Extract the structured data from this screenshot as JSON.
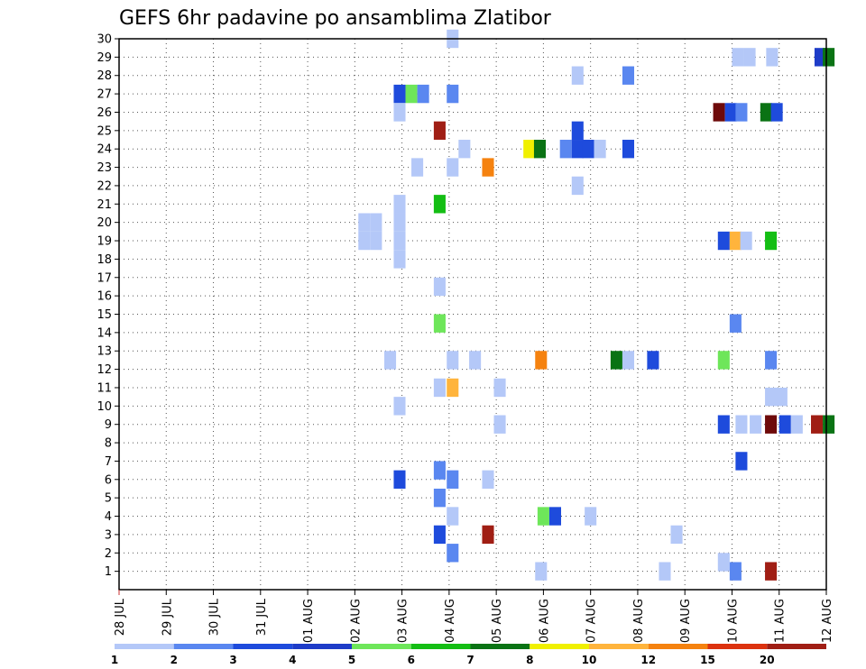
{
  "chart_data": {
    "type": "heatmap",
    "title": "GEFS 6hr padavine po ansamblima Zlatibor",
    "x_tick_labels": [
      "28 JUL",
      "29 JUL",
      "30 JUL",
      "31 JUL",
      "01 AUG",
      "02 AUG",
      "03 AUG",
      "04 AUG",
      "05 AUG",
      "06 AUG",
      "07 AUG",
      "08 AUG",
      "09 AUG",
      "10 AUG",
      "11 AUG",
      "12 AUG"
    ],
    "y_tick_labels": [
      "1",
      "2",
      "3",
      "4",
      "5",
      "6",
      "7",
      "8",
      "9",
      "10",
      "11",
      "12",
      "13",
      "14",
      "15",
      "16",
      "17",
      "18",
      "19",
      "20",
      "21",
      "22",
      "23",
      "24",
      "25",
      "26",
      "27",
      "28",
      "29",
      "30"
    ],
    "x_unit": "6-hour step from 28 JUL 00Z",
    "x_range": [
      0,
      60
    ],
    "y_range": [
      0,
      30
    ],
    "grid": true,
    "color_scale": {
      "labels": [
        "1",
        "2",
        "3",
        "4",
        "5",
        "6",
        "7",
        "8",
        "10",
        "12",
        "15",
        "20"
      ],
      "colors": [
        "#b4c8f8",
        "#5a87f0",
        "#1e4bdc",
        "#1e3cc8",
        "#6ee65a",
        "#14be14",
        "#0a7314",
        "#f0f000",
        "#ffb43c",
        "#f5820f",
        "#dc320f",
        "#a01e14",
        "#6e0a0a"
      ]
    },
    "points": [
      {
        "x": 28.3,
        "y": 30,
        "b": 0
      },
      {
        "x": 52.5,
        "y": 29,
        "b": 0
      },
      {
        "x": 53.5,
        "y": 29,
        "b": 0
      },
      {
        "x": 55.4,
        "y": 29,
        "b": 0
      },
      {
        "x": 59.5,
        "y": 29,
        "b": 3
      },
      {
        "x": 60.2,
        "y": 29,
        "b": 6
      },
      {
        "x": 38.9,
        "y": 28,
        "b": 0
      },
      {
        "x": 43.2,
        "y": 28,
        "b": 1
      },
      {
        "x": 23.8,
        "y": 27,
        "b": 2
      },
      {
        "x": 24.8,
        "y": 27,
        "b": 4
      },
      {
        "x": 25.8,
        "y": 27,
        "b": 1
      },
      {
        "x": 28.3,
        "y": 27,
        "b": 1
      },
      {
        "x": 50.9,
        "y": 26,
        "b": 12
      },
      {
        "x": 51.9,
        "y": 26,
        "b": 2
      },
      {
        "x": 52.8,
        "y": 26,
        "b": 1
      },
      {
        "x": 54.9,
        "y": 26,
        "b": 6
      },
      {
        "x": 55.8,
        "y": 26,
        "b": 2
      },
      {
        "x": 23.8,
        "y": 26,
        "b": 0
      },
      {
        "x": 27.2,
        "y": 25,
        "b": 11
      },
      {
        "x": 38.9,
        "y": 25,
        "b": 2
      },
      {
        "x": 29.3,
        "y": 24,
        "b": 0
      },
      {
        "x": 34.8,
        "y": 24,
        "b": 7
      },
      {
        "x": 35.7,
        "y": 24,
        "b": 6
      },
      {
        "x": 37.9,
        "y": 24,
        "b": 1
      },
      {
        "x": 38.9,
        "y": 24,
        "b": 2
      },
      {
        "x": 39.8,
        "y": 24,
        "b": 2
      },
      {
        "x": 40.8,
        "y": 24,
        "b": 0
      },
      {
        "x": 43.2,
        "y": 24,
        "b": 2
      },
      {
        "x": 25.3,
        "y": 23,
        "b": 0
      },
      {
        "x": 28.3,
        "y": 23,
        "b": 0
      },
      {
        "x": 31.3,
        "y": 23,
        "b": 9
      },
      {
        "x": 38.9,
        "y": 22,
        "b": 0
      },
      {
        "x": 23.8,
        "y": 21,
        "b": 0
      },
      {
        "x": 27.2,
        "y": 21,
        "b": 5
      },
      {
        "x": 20.8,
        "y": 20,
        "b": 0
      },
      {
        "x": 21.8,
        "y": 20,
        "b": 0
      },
      {
        "x": 23.8,
        "y": 20,
        "b": 0
      },
      {
        "x": 20.8,
        "y": 19,
        "b": 0
      },
      {
        "x": 21.8,
        "y": 19,
        "b": 0
      },
      {
        "x": 23.8,
        "y": 19,
        "b": 0
      },
      {
        "x": 51.3,
        "y": 19,
        "b": 2
      },
      {
        "x": 52.3,
        "y": 19,
        "b": 8
      },
      {
        "x": 53.2,
        "y": 19,
        "b": 0
      },
      {
        "x": 55.3,
        "y": 19,
        "b": 5
      },
      {
        "x": 23.8,
        "y": 18,
        "b": 0
      },
      {
        "x": 27.2,
        "y": 16.5,
        "b": 0
      },
      {
        "x": 27.2,
        "y": 14.5,
        "b": 4
      },
      {
        "x": 52.3,
        "y": 14.5,
        "b": 1
      },
      {
        "x": 23.0,
        "y": 12.5,
        "b": 0
      },
      {
        "x": 28.3,
        "y": 12.5,
        "b": 0
      },
      {
        "x": 30.2,
        "y": 12.5,
        "b": 0
      },
      {
        "x": 35.8,
        "y": 12.5,
        "b": 9
      },
      {
        "x": 42.2,
        "y": 12.5,
        "b": 6
      },
      {
        "x": 43.2,
        "y": 12.5,
        "b": 0
      },
      {
        "x": 45.3,
        "y": 12.5,
        "b": 2
      },
      {
        "x": 51.3,
        "y": 12.5,
        "b": 4
      },
      {
        "x": 55.3,
        "y": 12.5,
        "b": 1
      },
      {
        "x": 27.2,
        "y": 11,
        "b": 0
      },
      {
        "x": 28.3,
        "y": 11,
        "b": 8
      },
      {
        "x": 32.3,
        "y": 11,
        "b": 0
      },
      {
        "x": 55.3,
        "y": 10.5,
        "b": 0
      },
      {
        "x": 56.2,
        "y": 10.5,
        "b": 0
      },
      {
        "x": 23.8,
        "y": 10,
        "b": 0
      },
      {
        "x": 32.3,
        "y": 9,
        "b": 0
      },
      {
        "x": 51.3,
        "y": 9,
        "b": 2
      },
      {
        "x": 52.8,
        "y": 9,
        "b": 0
      },
      {
        "x": 54.0,
        "y": 9,
        "b": 0
      },
      {
        "x": 55.3,
        "y": 9,
        "b": 12
      },
      {
        "x": 56.5,
        "y": 9,
        "b": 2
      },
      {
        "x": 57.5,
        "y": 9,
        "b": 0
      },
      {
        "x": 59.2,
        "y": 9,
        "b": 11
      },
      {
        "x": 60.2,
        "y": 9,
        "b": 6
      },
      {
        "x": 52.8,
        "y": 7,
        "b": 2
      },
      {
        "x": 23.8,
        "y": 6,
        "b": 2
      },
      {
        "x": 27.2,
        "y": 6.5,
        "b": 1
      },
      {
        "x": 28.3,
        "y": 6,
        "b": 1
      },
      {
        "x": 31.3,
        "y": 6,
        "b": 0
      },
      {
        "x": 27.2,
        "y": 5,
        "b": 1
      },
      {
        "x": 28.3,
        "y": 4,
        "b": 0
      },
      {
        "x": 36.0,
        "y": 4,
        "b": 4
      },
      {
        "x": 37.0,
        "y": 4,
        "b": 2
      },
      {
        "x": 40.0,
        "y": 4,
        "b": 0
      },
      {
        "x": 27.2,
        "y": 3,
        "b": 2
      },
      {
        "x": 31.3,
        "y": 3,
        "b": 11
      },
      {
        "x": 47.3,
        "y": 3,
        "b": 0
      },
      {
        "x": 28.3,
        "y": 2,
        "b": 1
      },
      {
        "x": 51.3,
        "y": 1.5,
        "b": 0
      },
      {
        "x": 35.8,
        "y": 1,
        "b": 0
      },
      {
        "x": 46.3,
        "y": 1,
        "b": 0
      },
      {
        "x": 52.3,
        "y": 1,
        "b": 1
      },
      {
        "x": 55.3,
        "y": 1,
        "b": 11
      }
    ]
  }
}
